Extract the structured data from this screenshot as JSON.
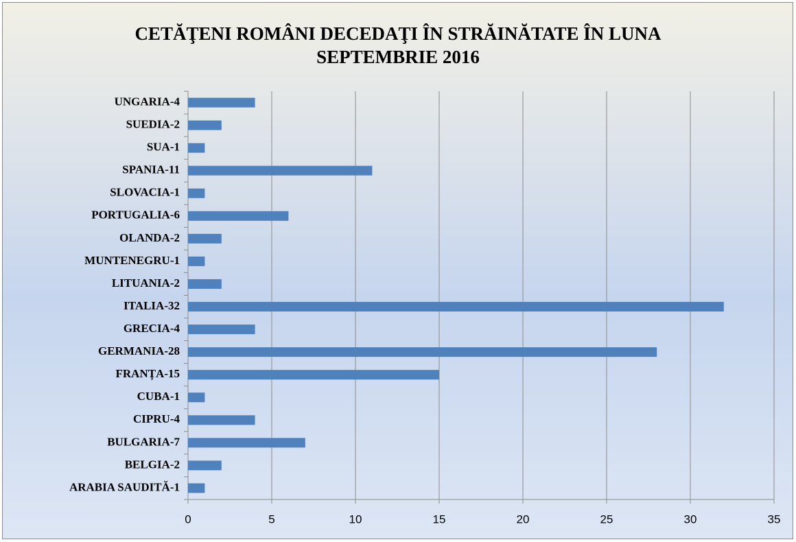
{
  "chart_data": {
    "type": "barh",
    "title": [
      "CETĂŢENI ROMÂNI DECEDAŢI ÎN STRĂINĂTATE ÎN LUNA",
      "SEPTEMBRIE 2016"
    ],
    "categories": [
      "ARABIA SAUDITĂ-1",
      "BELGIA-2",
      "BULGARIA-7",
      "CIPRU-4",
      "CUBA-1",
      "FRANȚA-15",
      "GERMANIA-28",
      "GRECIA-4",
      "ITALIA-32",
      "LITUANIA-2",
      "MUNTENEGRU-1",
      "OLANDA-2",
      "PORTUGALIA-6",
      "SLOVACIA-1",
      "SPANIA-11",
      "SUA-1",
      "SUEDIA-2",
      "UNGARIA-4"
    ],
    "values": [
      1,
      2,
      7,
      4,
      1,
      15,
      28,
      4,
      32,
      2,
      1,
      2,
      6,
      1,
      11,
      1,
      2,
      4
    ],
    "color": "#4f81bd",
    "xlim": [
      0,
      35
    ],
    "xticks": [
      0,
      5,
      10,
      15,
      20,
      25,
      30,
      35
    ],
    "grid": true
  }
}
